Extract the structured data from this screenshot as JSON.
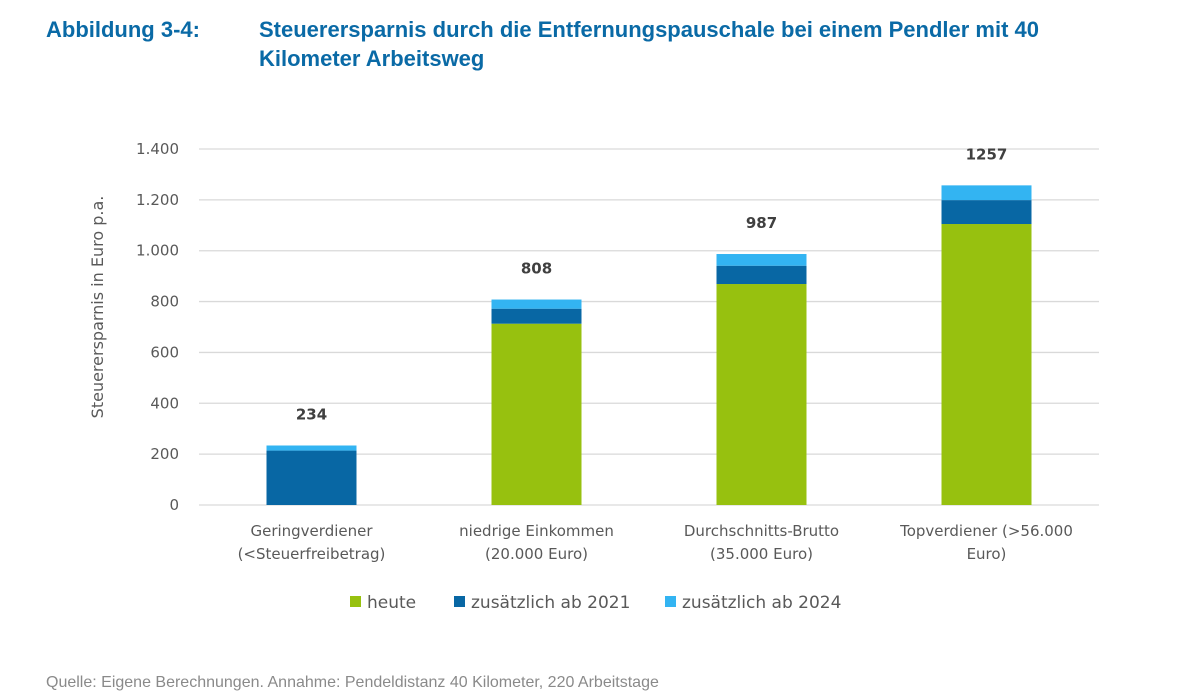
{
  "figure": {
    "number": "Abbildung 3-4:",
    "title": "Steuerersparnis durch die Entfernungspauschale bei einem Pendler mit 40 Kilometer Arbeitsweg",
    "source": "Quelle: Eigene Berechnungen. Annahme: Pendeldistanz 40 Kilometer, 220 Arbeitstage"
  },
  "chart_data": {
    "type": "bar",
    "stacked": true,
    "title": "Steuerersparnis durch die Entfernungspauschale bei einem Pendler mit 40 Kilometer Arbeitsweg",
    "xlabel": "",
    "ylabel": "Steuerersparnis in Euro p.a.",
    "ylim": [
      0,
      1400
    ],
    "yticks": [
      0,
      200,
      400,
      600,
      800,
      1000,
      1200,
      1400
    ],
    "ytick_labels": [
      "0",
      "200",
      "400",
      "600",
      "800",
      "1.000",
      "1.200",
      "1.400"
    ],
    "grid": true,
    "legend_position": "bottom",
    "categories": [
      [
        "Geringverdiener",
        "(<Steuerfreibetrag)"
      ],
      [
        "niedrige Einkommen",
        "(20.000 Euro)"
      ],
      [
        "Durchschnitts-Brutto",
        "(35.000 Euro)"
      ],
      [
        "Topverdiener (>56.000",
        "Euro)"
      ]
    ],
    "series": [
      {
        "name": "heute",
        "color": "#97c10f",
        "values": [
          0,
          713,
          869,
          1105
        ]
      },
      {
        "name": "zusätzlich ab 2021",
        "color": "#0867a4",
        "values": [
          214,
          59,
          72,
          94
        ]
      },
      {
        "name": "zusätzlich ab 2024",
        "color": "#33b4f2",
        "values": [
          20,
          36,
          46,
          58
        ]
      }
    ],
    "totals": [
      234,
      808,
      987,
      1257
    ],
    "total_labels": [
      "234",
      "808",
      "987",
      "1257"
    ],
    "gridline_color": "#d9d9d9"
  }
}
